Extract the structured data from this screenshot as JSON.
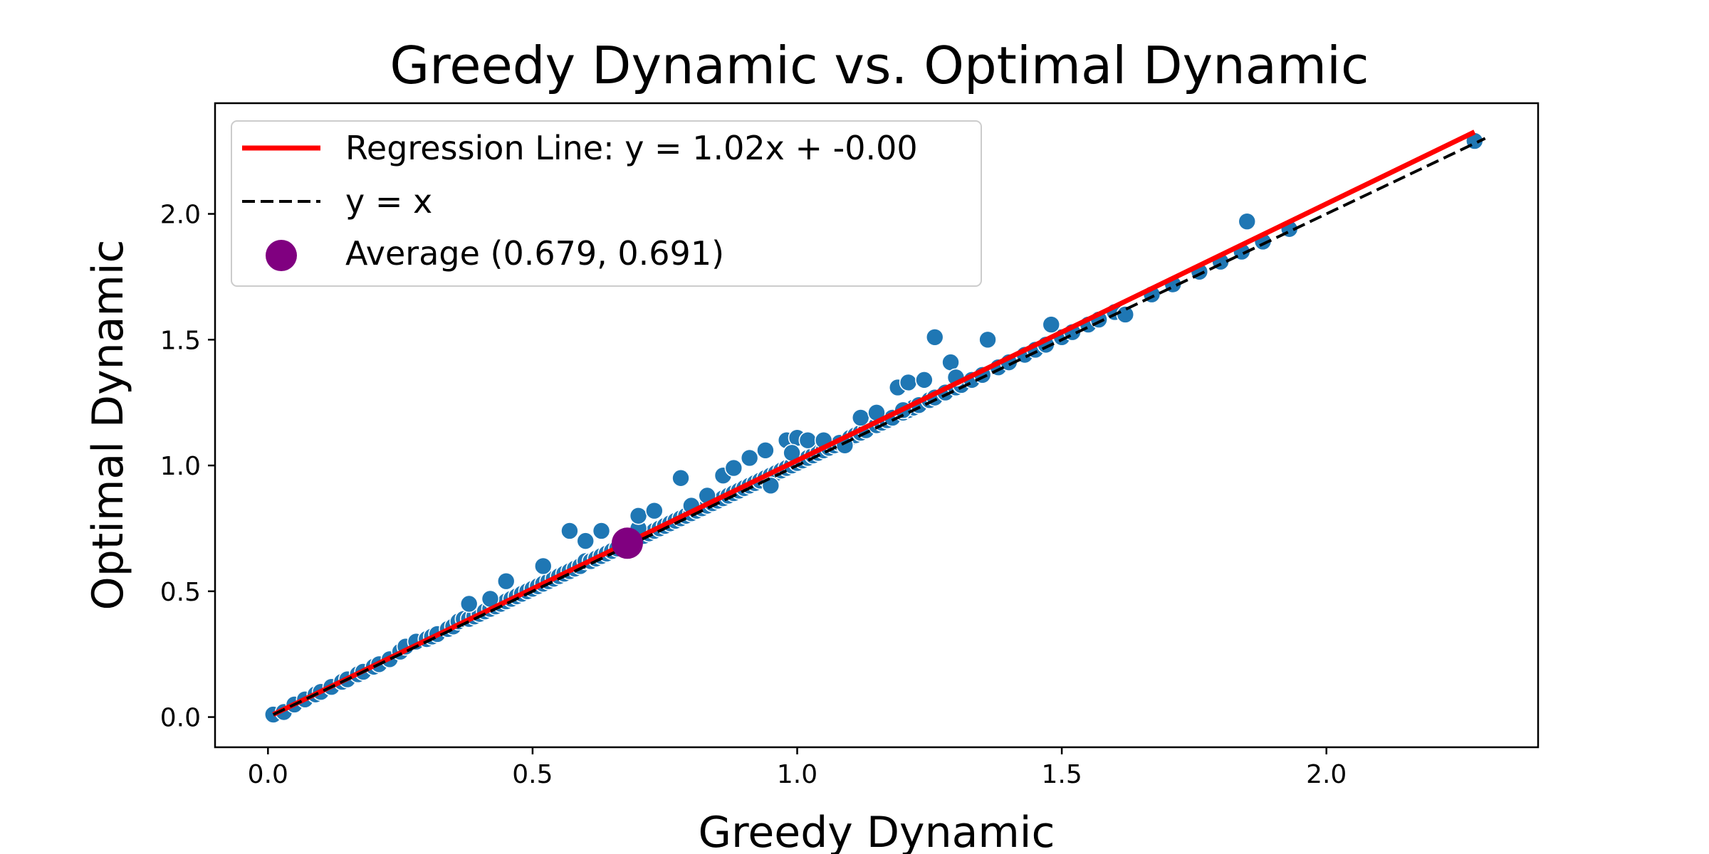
{
  "chart_data": {
    "type": "scatter",
    "title": "Greedy Dynamic vs. Optimal Dynamic",
    "xlabel": "Greedy Dynamic",
    "ylabel": "Optimal Dynamic",
    "xlim": [
      -0.1,
      2.4
    ],
    "ylim": [
      -0.12,
      2.44
    ],
    "x_ticks": [
      0.0,
      0.5,
      1.0,
      1.5,
      2.0
    ],
    "x_tick_labels": [
      "0.0",
      "0.5",
      "1.0",
      "1.5",
      "2.0"
    ],
    "y_ticks": [
      0.0,
      0.5,
      1.0,
      1.5,
      2.0
    ],
    "y_tick_labels": [
      "0.0",
      "0.5",
      "1.0",
      "1.5",
      "2.0"
    ],
    "grid": false,
    "legend_position": "top-left",
    "colors": {
      "points": "#1f77b4",
      "regression": "#ff0000",
      "identity": "#000000",
      "average": "#800080"
    },
    "series": [
      {
        "name": "",
        "kind": "points",
        "x": [
          0.01,
          0.03,
          0.05,
          0.07,
          0.09,
          0.1,
          0.12,
          0.14,
          0.15,
          0.17,
          0.18,
          0.2,
          0.21,
          0.23,
          0.25,
          0.26,
          0.28,
          0.3,
          0.31,
          0.32,
          0.34,
          0.35,
          0.36,
          0.37,
          0.38,
          0.39,
          0.4,
          0.41,
          0.42,
          0.43,
          0.44,
          0.45,
          0.46,
          0.47,
          0.48,
          0.49,
          0.5,
          0.51,
          0.52,
          0.53,
          0.54,
          0.55,
          0.56,
          0.57,
          0.58,
          0.59,
          0.6,
          0.61,
          0.62,
          0.63,
          0.64,
          0.65,
          0.66,
          0.67,
          0.68,
          0.69,
          0.7,
          0.71,
          0.72,
          0.73,
          0.74,
          0.75,
          0.76,
          0.77,
          0.78,
          0.79,
          0.8,
          0.81,
          0.82,
          0.83,
          0.84,
          0.85,
          0.86,
          0.87,
          0.88,
          0.89,
          0.9,
          0.91,
          0.92,
          0.93,
          0.94,
          0.95,
          0.96,
          0.97,
          0.98,
          0.99,
          1.0,
          1.01,
          1.02,
          1.03,
          1.04,
          1.05,
          1.06,
          1.07,
          1.08,
          1.1,
          1.11,
          1.12,
          1.13,
          1.15,
          1.16,
          1.17,
          1.18,
          1.2,
          1.21,
          1.22,
          1.23,
          1.25,
          1.26,
          1.28,
          1.3,
          1.31,
          1.33,
          1.35,
          1.38,
          1.4,
          1.43,
          1.45,
          1.47,
          1.5,
          1.52,
          1.55,
          1.57,
          1.6,
          1.67,
          1.71,
          1.76,
          1.8,
          1.84,
          1.88,
          1.93,
          2.28,
          0.38,
          0.42,
          0.45,
          0.52,
          0.57,
          0.6,
          0.63,
          0.67,
          0.7,
          0.78,
          0.8,
          0.86,
          0.88,
          0.91,
          0.94,
          0.98,
          1.0,
          1.02,
          1.05,
          1.12,
          1.15,
          1.19,
          1.21,
          1.24,
          1.26,
          1.29,
          1.36,
          1.48,
          1.85,
          0.7,
          0.73,
          0.83,
          0.95,
          0.99,
          1.09,
          1.2,
          1.3,
          1.62
        ],
        "y": [
          0.01,
          0.02,
          0.05,
          0.07,
          0.09,
          0.1,
          0.12,
          0.14,
          0.15,
          0.17,
          0.18,
          0.2,
          0.21,
          0.23,
          0.26,
          0.28,
          0.3,
          0.31,
          0.32,
          0.33,
          0.35,
          0.36,
          0.38,
          0.39,
          0.39,
          0.4,
          0.41,
          0.42,
          0.43,
          0.44,
          0.45,
          0.46,
          0.47,
          0.48,
          0.49,
          0.5,
          0.51,
          0.52,
          0.53,
          0.54,
          0.55,
          0.56,
          0.57,
          0.58,
          0.59,
          0.6,
          0.62,
          0.62,
          0.63,
          0.64,
          0.65,
          0.66,
          0.67,
          0.68,
          0.69,
          0.7,
          0.71,
          0.72,
          0.73,
          0.74,
          0.75,
          0.76,
          0.77,
          0.78,
          0.79,
          0.8,
          0.81,
          0.82,
          0.83,
          0.84,
          0.85,
          0.86,
          0.87,
          0.88,
          0.89,
          0.9,
          0.91,
          0.92,
          0.93,
          0.94,
          0.95,
          0.96,
          0.97,
          0.98,
          0.99,
          1.0,
          1.01,
          1.02,
          1.03,
          1.04,
          1.05,
          1.06,
          1.07,
          1.08,
          1.09,
          1.11,
          1.12,
          1.13,
          1.14,
          1.16,
          1.17,
          1.18,
          1.19,
          1.21,
          1.22,
          1.23,
          1.24,
          1.26,
          1.27,
          1.29,
          1.31,
          1.32,
          1.34,
          1.36,
          1.39,
          1.41,
          1.44,
          1.46,
          1.48,
          1.51,
          1.53,
          1.56,
          1.58,
          1.61,
          1.68,
          1.72,
          1.77,
          1.81,
          1.85,
          1.89,
          1.94,
          2.29,
          0.45,
          0.47,
          0.54,
          0.6,
          0.74,
          0.7,
          0.74,
          0.7,
          0.75,
          0.95,
          0.84,
          0.96,
          0.99,
          1.03,
          1.06,
          1.1,
          1.11,
          1.1,
          1.1,
          1.19,
          1.21,
          1.31,
          1.33,
          1.34,
          1.51,
          1.41,
          1.5,
          1.56,
          1.97,
          0.8,
          0.82,
          0.88,
          0.92,
          1.05,
          1.08,
          1.22,
          1.35,
          1.6
        ]
      },
      {
        "name": "Regression Line: y = 1.02x + -0.00",
        "kind": "line",
        "slope": 1.02,
        "intercept": -0.0,
        "x": [
          0.01,
          2.28
        ]
      },
      {
        "name": "y = x",
        "kind": "line",
        "slope": 1.0,
        "intercept": 0.0,
        "x": [
          0.01,
          2.3
        ]
      },
      {
        "name": "Average (0.679, 0.691)",
        "kind": "marker",
        "x": [
          0.679
        ],
        "y": [
          0.691
        ]
      }
    ]
  }
}
